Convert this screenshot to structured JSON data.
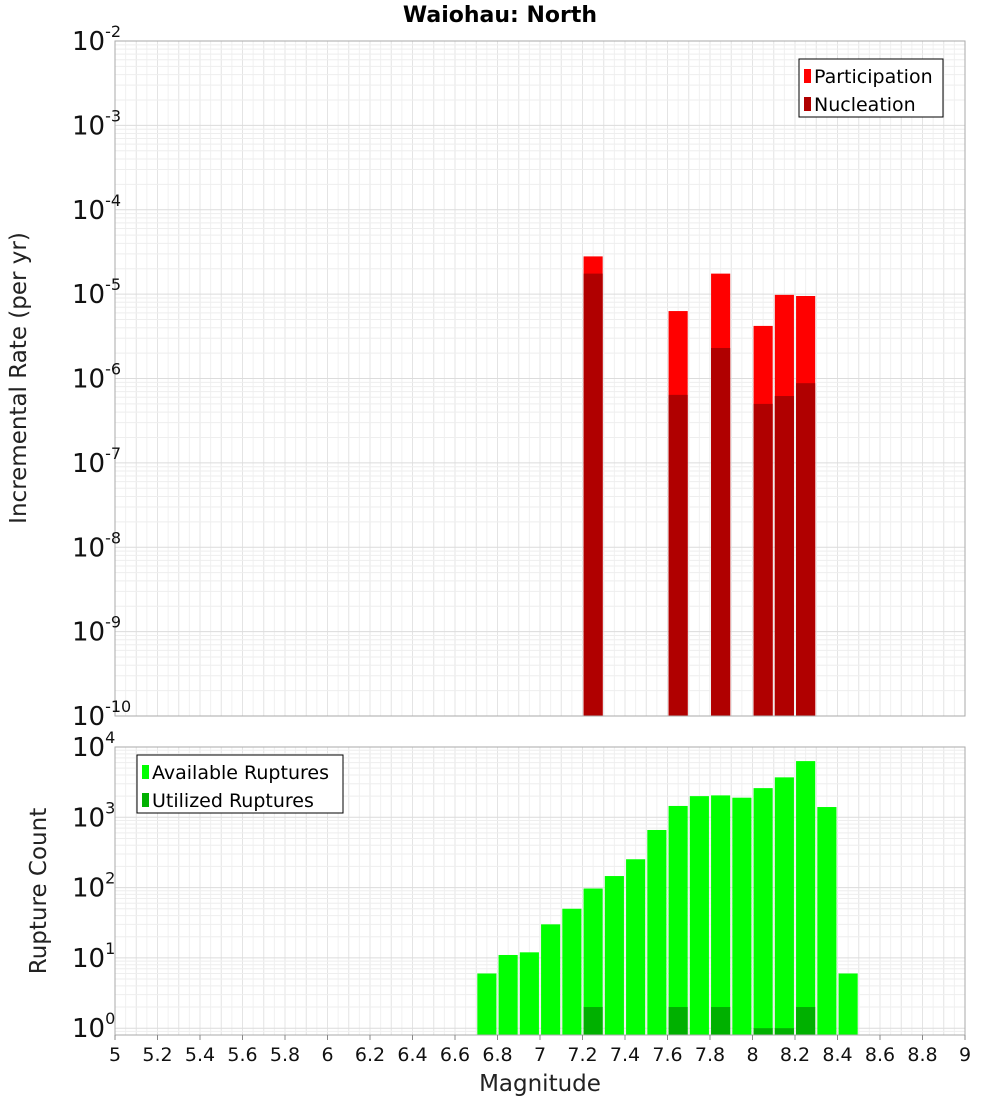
{
  "chart_data": [
    {
      "type": "bar",
      "title": "Waiohau: North",
      "xlabel": "",
      "ylabel": "Incremental Rate (per yr)",
      "yscale": "log",
      "ylim": [
        1e-10,
        0.01
      ],
      "xlim": [
        5,
        9
      ],
      "bin_width": 0.1,
      "grid": true,
      "legend_position": "top-right",
      "yticks": [
        {
          "base": "10",
          "exp": "-10"
        },
        {
          "base": "10",
          "exp": "-9"
        },
        {
          "base": "10",
          "exp": "-8"
        },
        {
          "base": "10",
          "exp": "-7"
        },
        {
          "base": "10",
          "exp": "-6"
        },
        {
          "base": "10",
          "exp": "-5"
        },
        {
          "base": "10",
          "exp": "-4"
        },
        {
          "base": "10",
          "exp": "-3"
        },
        {
          "base": "10",
          "exp": "-2"
        }
      ],
      "series": [
        {
          "name": "Participation",
          "color": "#ff0000",
          "x": [
            7.25,
            7.65,
            7.85,
            8.05,
            8.15,
            8.25
          ],
          "values": [
            2.8e-05,
            6.3e-06,
            1.75e-05,
            4.2e-06,
            9.8e-06,
            9.5e-06
          ]
        },
        {
          "name": "Nucleation",
          "color": "#b00000",
          "x": [
            7.25,
            7.65,
            7.85,
            8.05,
            8.15,
            8.25
          ],
          "values": [
            1.75e-05,
            6.4e-07,
            2.3e-06,
            5e-07,
            6.2e-07,
            8.8e-07
          ]
        }
      ]
    },
    {
      "type": "bar",
      "title": "",
      "xlabel": "Magnitude",
      "ylabel": "Rupture Count",
      "yscale": "log",
      "ylim": [
        0.8,
        10000
      ],
      "xlim": [
        5,
        9
      ],
      "bin_width": 0.1,
      "grid": true,
      "legend_position": "top-left",
      "xticks": [
        "5",
        "5.2",
        "5.4",
        "5.6",
        "5.8",
        "6",
        "6.2",
        "6.4",
        "6.6",
        "6.8",
        "7",
        "7.2",
        "7.4",
        "7.6",
        "7.8",
        "8",
        "8.2",
        "8.4",
        "8.6",
        "8.8",
        "9"
      ],
      "yticks": [
        {
          "base": "10",
          "exp": "0"
        },
        {
          "base": "10",
          "exp": "1"
        },
        {
          "base": "10",
          "exp": "2"
        },
        {
          "base": "10",
          "exp": "3"
        },
        {
          "base": "10",
          "exp": "4"
        }
      ],
      "series": [
        {
          "name": "Available Ruptures",
          "color": "#00ff00",
          "x": [
            6.75,
            6.85,
            6.95,
            7.05,
            7.15,
            7.25,
            7.35,
            7.45,
            7.55,
            7.65,
            7.75,
            7.85,
            7.95,
            8.05,
            8.15,
            8.25,
            8.35,
            8.45
          ],
          "values": [
            6,
            11,
            12,
            30,
            50,
            97,
            146,
            253,
            660,
            1450,
            2000,
            2050,
            1900,
            2600,
            3700,
            6300,
            1400,
            6
          ]
        },
        {
          "name": "Utilized Ruptures",
          "color": "#00b000",
          "x": [
            7.25,
            7.65,
            7.85,
            8.05,
            8.15,
            8.25
          ],
          "values": [
            2,
            2,
            2,
            1,
            1,
            2
          ]
        }
      ]
    }
  ]
}
